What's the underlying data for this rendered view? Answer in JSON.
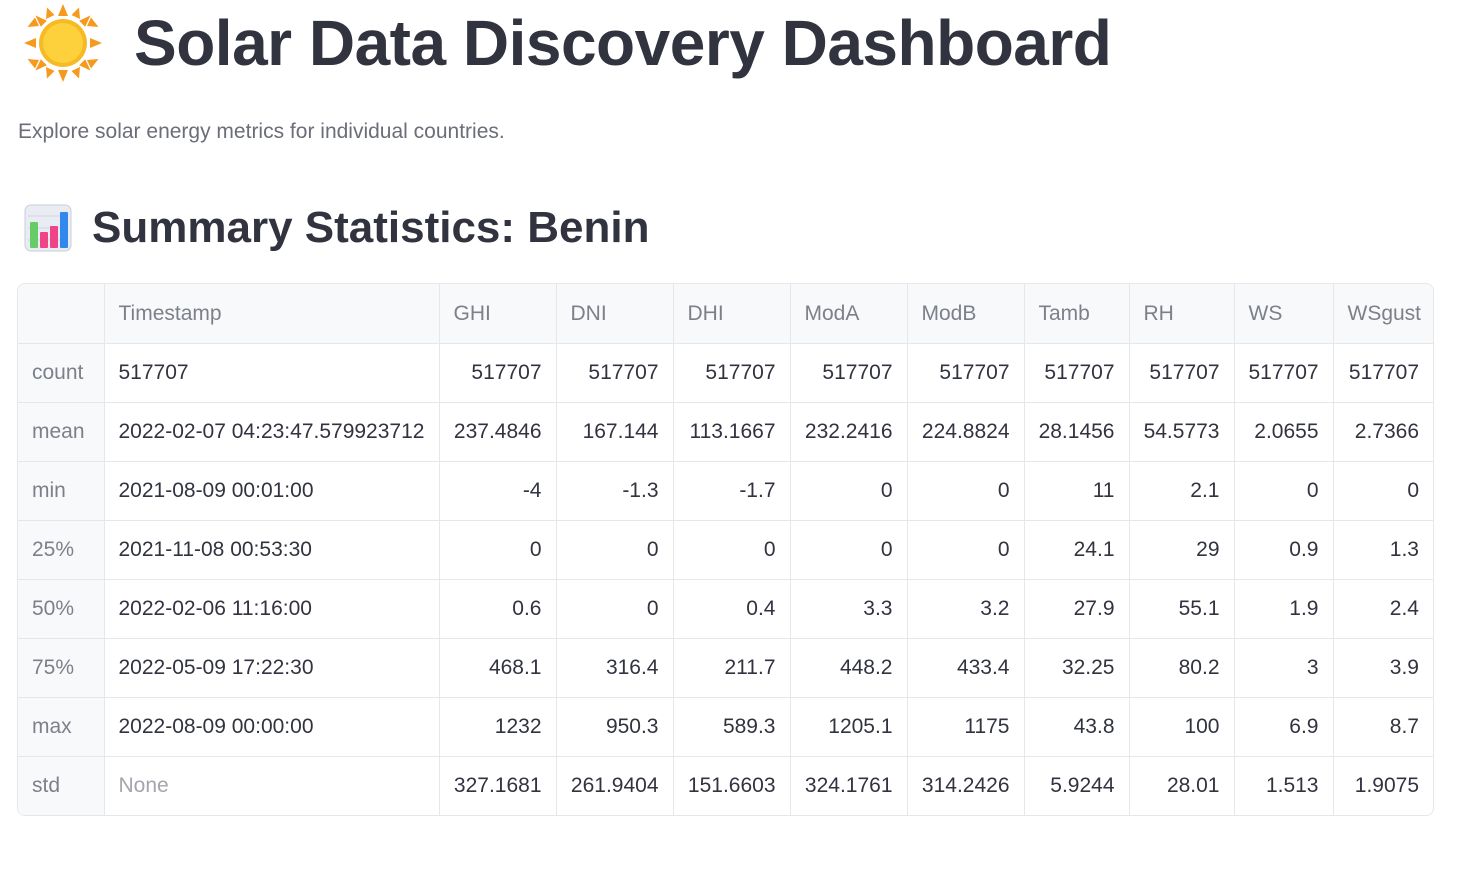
{
  "header": {
    "title": "Solar Data Discovery Dashboard",
    "title_icon": "sun-icon",
    "subtitle": "Explore solar energy metrics for individual countries."
  },
  "section": {
    "title": "Summary Statistics: Benin",
    "icon": "bar-chart-icon"
  },
  "table": {
    "columns": [
      "",
      "Timestamp",
      "GHI",
      "DNI",
      "DHI",
      "ModA",
      "ModB",
      "Tamb",
      "RH",
      "WS",
      "WSgust"
    ],
    "rows": [
      [
        "count",
        "517707",
        "517707",
        "517707",
        "517707",
        "517707",
        "517707",
        "517707",
        "517707",
        "517707",
        "517707"
      ],
      [
        "mean",
        "2022-02-07 04:23:47.579923712",
        "237.4846",
        "167.144",
        "113.1667",
        "232.2416",
        "224.8824",
        "28.1456",
        "54.5773",
        "2.0655",
        "2.7366"
      ],
      [
        "min",
        "2021-08-09 00:01:00",
        "-4",
        "-1.3",
        "-1.7",
        "0",
        "0",
        "11",
        "2.1",
        "0",
        "0"
      ],
      [
        "25%",
        "2021-11-08 00:53:30",
        "0",
        "0",
        "0",
        "0",
        "0",
        "24.1",
        "29",
        "0.9",
        "1.3"
      ],
      [
        "50%",
        "2022-02-06 11:16:00",
        "0.6",
        "0",
        "0.4",
        "3.3",
        "3.2",
        "27.9",
        "55.1",
        "1.9",
        "2.4"
      ],
      [
        "75%",
        "2022-05-09 17:22:30",
        "468.1",
        "316.4",
        "211.7",
        "448.2",
        "433.4",
        "32.25",
        "80.2",
        "3",
        "3.9"
      ],
      [
        "max",
        "2022-08-09 00:00:00",
        "1232",
        "950.3",
        "589.3",
        "1205.1",
        "1175",
        "43.8",
        "100",
        "6.9",
        "8.7"
      ],
      [
        "std",
        "None",
        "327.1681",
        "261.9404",
        "151.6603",
        "324.1761",
        "314.2426",
        "5.9244",
        "28.01",
        "1.513",
        "1.9075"
      ]
    ]
  },
  "colors": {
    "text": "#31333f",
    "muted": "#6b6e78",
    "header_bg": "#f8f9fb",
    "border": "#e6e7ea"
  }
}
